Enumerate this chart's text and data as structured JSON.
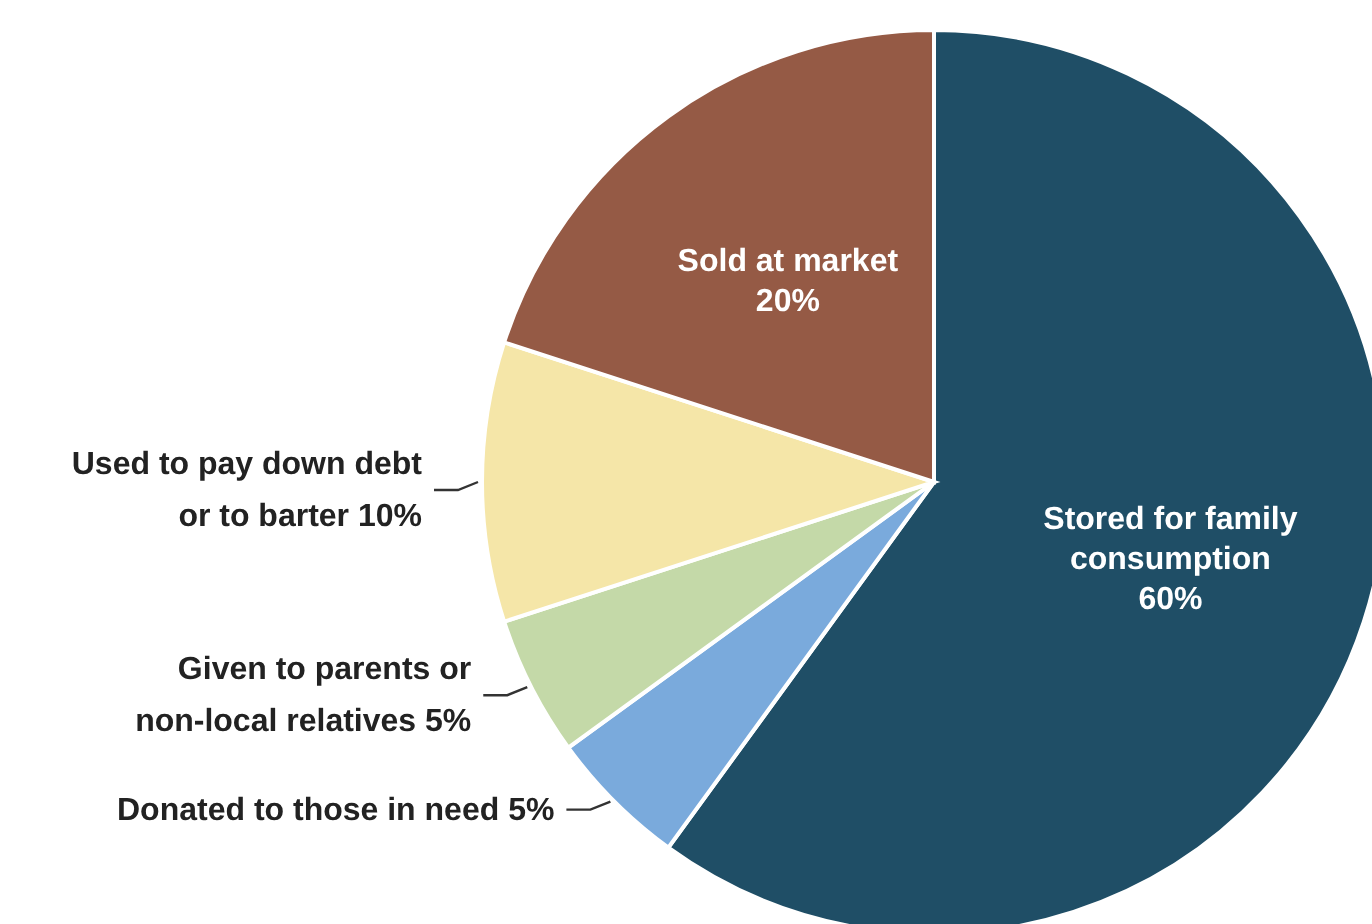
{
  "chart_data": {
    "type": "pie",
    "categories": [
      "Stored for family consumption",
      "Donated to those in need",
      "Given to parents or non-local relatives",
      "Used to pay down debt or to barter",
      "Sold at market"
    ],
    "values": [
      60,
      5,
      5,
      10,
      20
    ],
    "colors": [
      "#1f4e66",
      "#7aaadc",
      "#c4d9a8",
      "#f5e6a8",
      "#955a45"
    ],
    "value_labels": [
      "60%",
      "5%",
      "5%",
      "10%",
      "20%"
    ],
    "legend": false
  }
}
